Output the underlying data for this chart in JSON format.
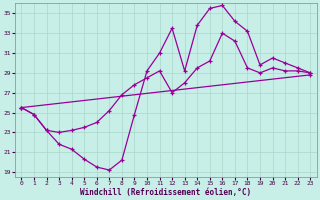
{
  "xlabel": "Windchill (Refroidissement éolien,°C)",
  "bg_color": "#c8eee8",
  "grid_color": "#a8d8c8",
  "line_color": "#990099",
  "xlim": [
    -0.5,
    23.5
  ],
  "ylim": [
    18.5,
    36.0
  ],
  "yticks": [
    19,
    21,
    23,
    25,
    27,
    29,
    31,
    33,
    35
  ],
  "xticks": [
    0,
    1,
    2,
    3,
    4,
    5,
    6,
    7,
    8,
    9,
    10,
    11,
    12,
    13,
    14,
    15,
    16,
    17,
    18,
    19,
    20,
    21,
    22,
    23
  ],
  "line1_x": [
    0,
    1,
    2,
    3,
    4,
    5,
    6,
    7,
    8,
    9,
    10,
    11,
    12,
    13,
    14,
    15,
    16,
    17,
    18,
    19,
    20,
    21,
    22,
    23
  ],
  "line1_y": [
    25.5,
    24.8,
    23.2,
    21.8,
    21.3,
    20.3,
    19.5,
    19.2,
    20.2,
    24.8,
    29.2,
    31.0,
    33.5,
    29.2,
    33.8,
    35.5,
    35.8,
    34.2,
    33.2,
    29.8,
    30.5,
    30.0,
    29.5,
    29.0
  ],
  "line2_x": [
    0,
    1,
    2,
    3,
    4,
    5,
    6,
    7,
    8,
    9,
    10,
    11,
    12,
    13,
    14,
    15,
    16,
    17,
    18,
    19,
    20,
    21,
    22,
    23
  ],
  "line2_y": [
    25.5,
    24.8,
    23.2,
    23.0,
    23.2,
    23.5,
    24.0,
    25.2,
    26.8,
    27.8,
    28.5,
    29.2,
    27.0,
    28.0,
    29.5,
    30.2,
    33.0,
    32.2,
    29.5,
    29.0,
    29.5,
    29.2,
    29.2,
    29.0
  ],
  "line3_x": [
    0,
    23
  ],
  "line3_y": [
    25.5,
    28.8
  ]
}
